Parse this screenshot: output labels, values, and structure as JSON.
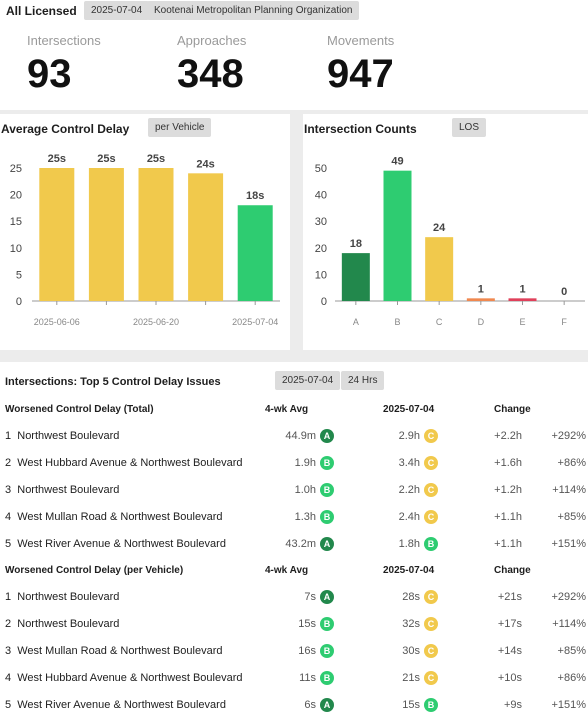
{
  "header": {
    "title": "All Licensed",
    "date_pill": "2025-07-04",
    "org_pill": "Kootenai Metropolitan Planning Organization",
    "metrics": [
      {
        "label": "Intersections",
        "value": "93"
      },
      {
        "label": "Approaches",
        "value": "348"
      },
      {
        "label": "Movements",
        "value": "947"
      }
    ]
  },
  "delay_chart": {
    "title": "Average Control Delay",
    "pill": "per Vehicle",
    "chart_data": {
      "type": "bar",
      "categories": [
        "2025-06-06",
        "",
        "2025-06-20",
        "",
        "2025-07-04"
      ],
      "values": [
        25,
        25,
        25,
        24,
        18
      ],
      "labels": [
        "25s",
        "25s",
        "25s",
        "24s",
        "18s"
      ],
      "colors": [
        "#f1c94c",
        "#f1c94c",
        "#f1c94c",
        "#f1c94c",
        "#2ecc71"
      ],
      "ylim": [
        0,
        25
      ],
      "yticks": [
        0,
        5,
        10,
        15,
        20,
        25
      ]
    }
  },
  "count_chart": {
    "title": "Intersection Counts",
    "pill": "LOS",
    "chart_data": {
      "type": "bar",
      "categories": [
        "A",
        "B",
        "C",
        "D",
        "E",
        "F"
      ],
      "values": [
        18,
        49,
        24,
        1,
        1,
        0
      ],
      "labels": [
        "18",
        "49",
        "24",
        "1",
        "1",
        "0"
      ],
      "colors": [
        "#22884c",
        "#2ecc71",
        "#f1c94c",
        "#f0884f",
        "#e0405a",
        "#999999"
      ],
      "ylim": [
        0,
        50
      ],
      "yticks": [
        0,
        10,
        20,
        30,
        40,
        50
      ]
    }
  },
  "issues": {
    "title": "Intersections: Top 5 Control Delay Issues",
    "date_pill": "2025-07-04",
    "period_pill": "24 Hrs",
    "sections": [
      {
        "header": {
          "name": "Worsened Control Delay (Total)",
          "avg": "4-wk Avg",
          "date": "2025-07-04",
          "change": "Change"
        },
        "rows": [
          {
            "rank": "1",
            "name": "Northwest Boulevard",
            "v1": "44.9m",
            "g1": "A",
            "v2": "2.9h",
            "g2": "C",
            "change": "+2.2h",
            "pct": "+292%"
          },
          {
            "rank": "2",
            "name": "West Hubbard Avenue & Northwest Boulevard",
            "v1": "1.9h",
            "g1": "B",
            "v2": "3.4h",
            "g2": "C",
            "change": "+1.6h",
            "pct": "+86%"
          },
          {
            "rank": "3",
            "name": "Northwest Boulevard",
            "v1": "1.0h",
            "g1": "B",
            "v2": "2.2h",
            "g2": "C",
            "change": "+1.2h",
            "pct": "+114%"
          },
          {
            "rank": "4",
            "name": "West Mullan Road & Northwest Boulevard",
            "v1": "1.3h",
            "g1": "B",
            "v2": "2.4h",
            "g2": "C",
            "change": "+1.1h",
            "pct": "+85%"
          },
          {
            "rank": "5",
            "name": "West River Avenue & Northwest Boulevard",
            "v1": "43.2m",
            "g1": "A",
            "v2": "1.8h",
            "g2": "B",
            "change": "+1.1h",
            "pct": "+151%"
          }
        ]
      },
      {
        "header": {
          "name": "Worsened Control Delay (per Vehicle)",
          "avg": "4-wk Avg",
          "date": "2025-07-04",
          "change": "Change"
        },
        "rows": [
          {
            "rank": "1",
            "name": "Northwest Boulevard",
            "v1": "7s",
            "g1": "A",
            "v2": "28s",
            "g2": "C",
            "change": "+21s",
            "pct": "+292%"
          },
          {
            "rank": "2",
            "name": "Northwest Boulevard",
            "v1": "15s",
            "g1": "B",
            "v2": "32s",
            "g2": "C",
            "change": "+17s",
            "pct": "+114%"
          },
          {
            "rank": "3",
            "name": "West Mullan Road & Northwest Boulevard",
            "v1": "16s",
            "g1": "B",
            "v2": "30s",
            "g2": "C",
            "change": "+14s",
            "pct": "+85%"
          },
          {
            "rank": "4",
            "name": "West Hubbard Avenue & Northwest Boulevard",
            "v1": "11s",
            "g1": "B",
            "v2": "21s",
            "g2": "C",
            "change": "+10s",
            "pct": "+86%"
          },
          {
            "rank": "5",
            "name": "West River Avenue & Northwest Boulevard",
            "v1": "6s",
            "g1": "A",
            "v2": "15s",
            "g2": "B",
            "change": "+9s",
            "pct": "+151%"
          }
        ]
      }
    ]
  },
  "grade_colors": {
    "A": "#22884c",
    "B": "#2ecc71",
    "C": "#f1c94c"
  }
}
